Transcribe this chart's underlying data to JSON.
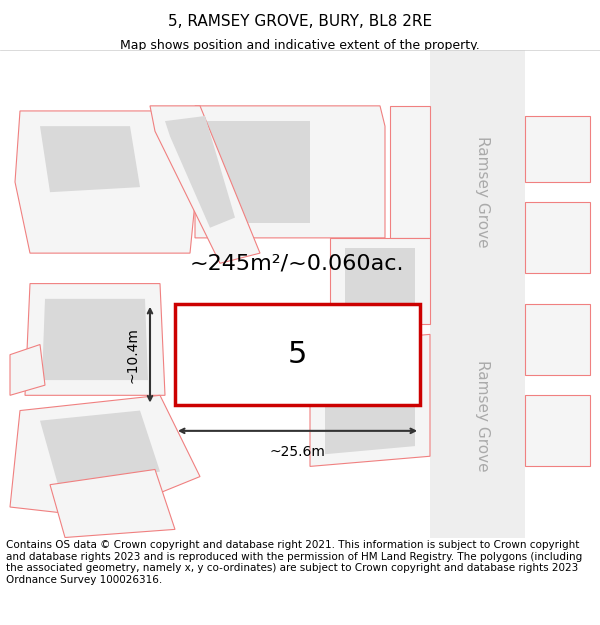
{
  "title": "5, RAMSEY GROVE, BURY, BL8 2RE",
  "subtitle": "Map shows position and indicative extent of the property.",
  "footer": "Contains OS data © Crown copyright and database right 2021. This information is subject to Crown copyright and database rights 2023 and is reproduced with the permission of HM Land Registry. The polygons (including the associated geometry, namely x, y co-ordinates) are subject to Crown copyright and database rights 2023 Ordnance Survey 100026316.",
  "area_text": "~245m²/~0.060ac.",
  "width_text": "~25.6m",
  "height_text": "~10.4m",
  "property_number": "5",
  "bg_color": "#f5f5f5",
  "map_bg": "#ffffff",
  "road_color": "#ffffff",
  "plot_outline_color": "#cc0000",
  "plot_fill": "#ffffff",
  "building_fill": "#d9d9d9",
  "other_outline_color": "#f08080",
  "road_label_color": "#aaaaaa",
  "dimension_color": "#333333",
  "title_fontsize": 11,
  "subtitle_fontsize": 9,
  "footer_fontsize": 7.5,
  "area_fontsize": 16,
  "number_fontsize": 22,
  "dim_fontsize": 10,
  "road_label_fontsize": 11
}
